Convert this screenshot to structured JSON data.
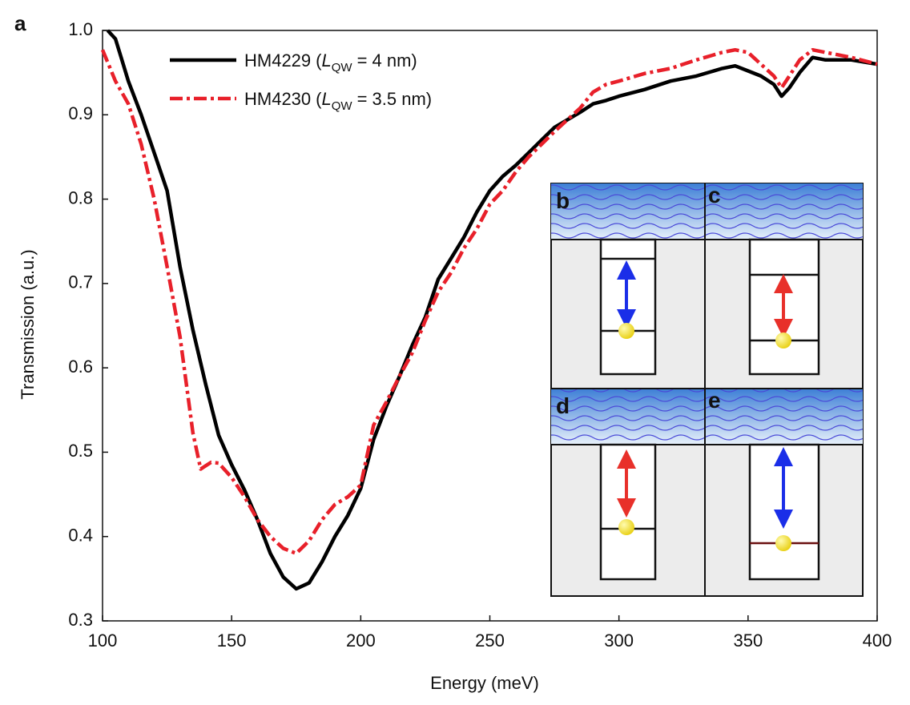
{
  "panel_label": "a",
  "inset_labels": [
    "b",
    "c",
    "d",
    "e"
  ],
  "chart_data": {
    "type": "line",
    "x_label": "Energy (meV)",
    "y_label": "Transmission (a.u.)",
    "xlim": [
      100,
      400
    ],
    "xticks": [
      100,
      150,
      200,
      250,
      300,
      350,
      400
    ],
    "ylim": [
      0.3,
      1.0
    ],
    "yticks": [
      0.3,
      0.4,
      0.5,
      0.6,
      0.7,
      0.8,
      0.9,
      {
        "value": 1,
        "label": "1.0"
      }
    ],
    "series": [
      {
        "name": "HM4229",
        "label_parts": [
          "(",
          "L",
          "QW",
          "= 4 nm)"
        ],
        "color": "#000000",
        "dash": "solid",
        "x": [
          102,
          105,
          107,
          110,
          115,
          120,
          125,
          130,
          135,
          140,
          145,
          150,
          155,
          160,
          165,
          170,
          175,
          180,
          185,
          190,
          195,
          200,
          205,
          210,
          215,
          220,
          225,
          230,
          235,
          240,
          245,
          250,
          255,
          260,
          265,
          270,
          275,
          280,
          285,
          290,
          295,
          300,
          310,
          320,
          330,
          340,
          345,
          350,
          355,
          360,
          363,
          366,
          370,
          375,
          380,
          390,
          400
        ],
        "values": [
          1.0,
          0.99,
          0.97,
          0.94,
          0.9,
          0.855,
          0.81,
          0.72,
          0.645,
          0.58,
          0.52,
          0.485,
          0.455,
          0.42,
          0.38,
          0.352,
          0.338,
          0.345,
          0.37,
          0.4,
          0.425,
          0.457,
          0.515,
          0.555,
          0.59,
          0.627,
          0.66,
          0.705,
          0.73,
          0.755,
          0.785,
          0.81,
          0.827,
          0.84,
          0.855,
          0.87,
          0.885,
          0.894,
          0.903,
          0.913,
          0.917,
          0.922,
          0.93,
          0.94,
          0.946,
          0.955,
          0.958,
          0.952,
          0.946,
          0.936,
          0.922,
          0.932,
          0.95,
          0.968,
          0.965,
          0.965,
          0.96
        ]
      },
      {
        "name": "HM4230",
        "label_parts": [
          "(",
          "L",
          "QW",
          "= 3.5 nm)"
        ],
        "color": "#e8202a",
        "dash": "dashdot",
        "x": [
          100,
          105,
          110,
          115,
          120,
          125,
          130,
          135,
          138,
          142,
          145,
          150,
          155,
          160,
          165,
          170,
          175,
          180,
          185,
          190,
          195,
          200,
          205,
          210,
          215,
          220,
          225,
          230,
          235,
          240,
          245,
          250,
          255,
          260,
          265,
          270,
          275,
          280,
          285,
          290,
          295,
          300,
          310,
          320,
          330,
          340,
          345,
          350,
          355,
          360,
          363,
          366,
          370,
          375,
          380,
          390,
          400
        ],
        "values": [
          0.977,
          0.94,
          0.913,
          0.865,
          0.8,
          0.72,
          0.637,
          0.523,
          0.48,
          0.488,
          0.487,
          0.47,
          0.447,
          0.42,
          0.4,
          0.386,
          0.38,
          0.395,
          0.42,
          0.438,
          0.447,
          0.461,
          0.532,
          0.56,
          0.59,
          0.618,
          0.656,
          0.69,
          0.713,
          0.742,
          0.765,
          0.794,
          0.81,
          0.832,
          0.85,
          0.865,
          0.88,
          0.894,
          0.908,
          0.927,
          0.936,
          0.94,
          0.949,
          0.955,
          0.965,
          0.974,
          0.977,
          0.974,
          0.96,
          0.946,
          0.932,
          0.946,
          0.965,
          0.977,
          0.974,
          0.968,
          0.96
        ]
      }
    ]
  }
}
